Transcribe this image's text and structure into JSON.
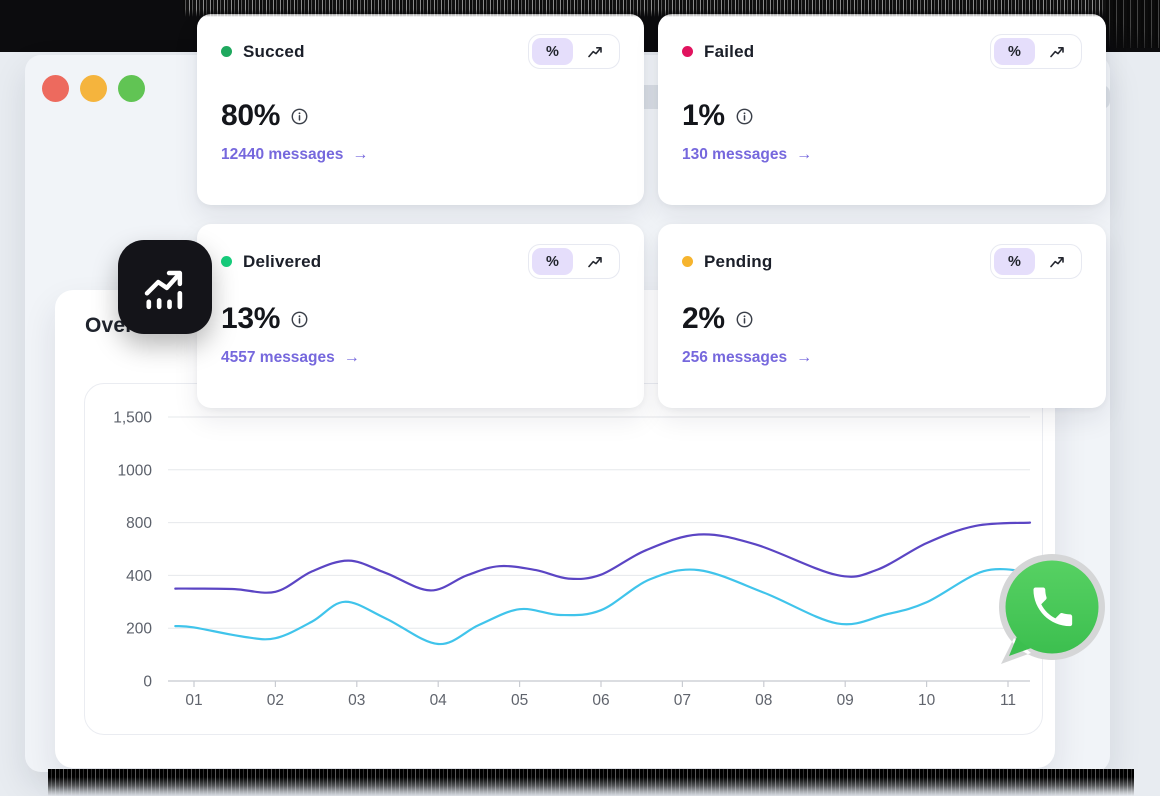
{
  "theme": {
    "accent_purple": "#7668dd",
    "toggle_active_bg": "#e5defb",
    "badge_bg": "#141419",
    "whatsapp_green_light": "#57d163",
    "whatsapp_green_dark": "#3cbf4f"
  },
  "window": {
    "traffic_lights": {
      "close": "#ed6a5e",
      "minimize": "#f5b43d",
      "zoom": "#61c454"
    }
  },
  "card_controls": {
    "percent_label": "%",
    "trend_icon": "trend-up-icon",
    "arrow": "→"
  },
  "cards": [
    {
      "label": "Succed",
      "dot_color": "#1fa85e",
      "value": "80%",
      "messages_link": "12440 messages"
    },
    {
      "label": "Failed",
      "dot_color": "#e1135e",
      "value": "1%",
      "messages_link": "130 messages"
    },
    {
      "label": "Delivered",
      "dot_color": "#17cd7c",
      "value": "13%",
      "messages_link": "4557 messages"
    },
    {
      "label": "Pending",
      "dot_color": "#f6b42e",
      "value": "2%",
      "messages_link": "256 messages"
    }
  ],
  "overview": {
    "title": "Overview"
  },
  "chart_data": {
    "type": "line",
    "title": "Overview",
    "grid": true,
    "legend": false,
    "x_labels": [
      "01",
      "02",
      "03",
      "04",
      "05",
      "06",
      "07",
      "08",
      "09",
      "10",
      "11"
    ],
    "y_ticks": [
      {
        "label": "0",
        "value": 0
      },
      {
        "label": "200",
        "value": 200
      },
      {
        "label": "400",
        "value": 400
      },
      {
        "label": "800",
        "value": 800
      },
      {
        "label": "1000",
        "value": 1000
      },
      {
        "label": "1,500",
        "value": 1500
      }
    ],
    "axis_note": "y axis is non-linear: tick values 0/200/400/800/1000/1500 are evenly spaced; x in month-index units where 1 = '01'",
    "series": [
      {
        "name": "violet-series",
        "color": "#5b45c4",
        "points": [
          [
            0.77,
            350
          ],
          [
            1,
            350
          ],
          [
            1.5,
            348
          ],
          [
            2,
            338
          ],
          [
            2.45,
            430
          ],
          [
            2.9,
            512
          ],
          [
            3.35,
            420
          ],
          [
            3.9,
            343
          ],
          [
            4.35,
            400
          ],
          [
            4.75,
            470
          ],
          [
            5.2,
            440
          ],
          [
            5.6,
            388
          ],
          [
            6,
            405
          ],
          [
            6.55,
            590
          ],
          [
            7.2,
            710
          ],
          [
            7.9,
            635
          ],
          [
            8.9,
            402
          ],
          [
            9.4,
            445
          ],
          [
            10,
            645
          ],
          [
            10.6,
            775
          ],
          [
            11.27,
            800
          ]
        ]
      },
      {
        "name": "cyan-series",
        "color": "#40c4eb",
        "points": [
          [
            0.77,
            208
          ],
          [
            1,
            203
          ],
          [
            1.6,
            168
          ],
          [
            2,
            162
          ],
          [
            2.45,
            225
          ],
          [
            2.85,
            300
          ],
          [
            3.35,
            238
          ],
          [
            4,
            140
          ],
          [
            4.5,
            212
          ],
          [
            5,
            272
          ],
          [
            5.5,
            250
          ],
          [
            6,
            268
          ],
          [
            6.6,
            385
          ],
          [
            7.2,
            440
          ],
          [
            8,
            335
          ],
          [
            8.9,
            218
          ],
          [
            9.5,
            252
          ],
          [
            10,
            298
          ],
          [
            10.7,
            432
          ],
          [
            11.27,
            425
          ]
        ]
      }
    ]
  }
}
